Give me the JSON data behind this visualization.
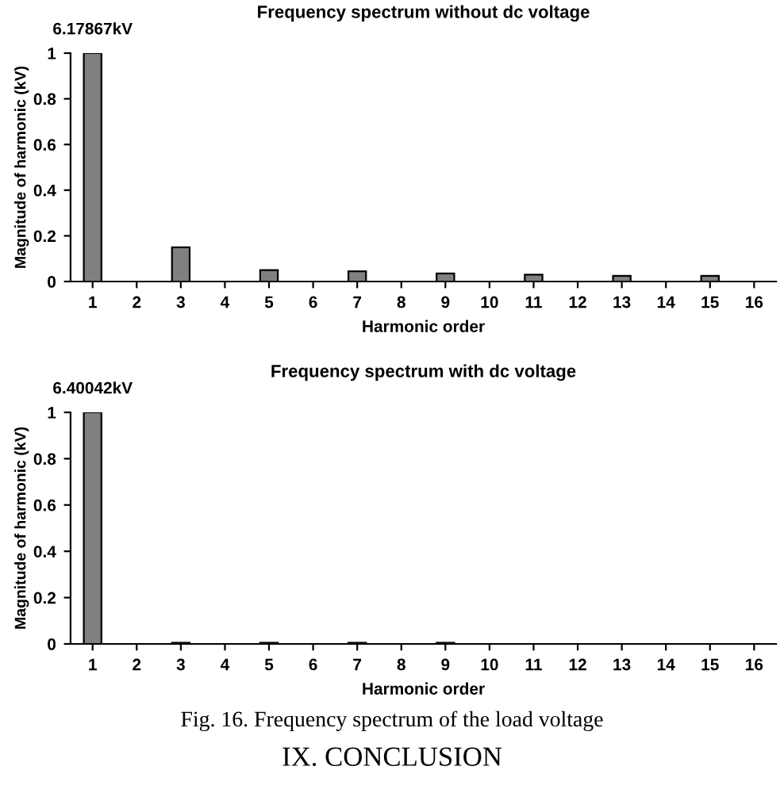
{
  "chart_data": [
    {
      "type": "bar",
      "title": "Frequency spectrum without dc voltage",
      "xlabel": "Harmonic order",
      "ylabel": "Magnitude of harmonic (kV)",
      "categories": [
        "1",
        "2",
        "3",
        "4",
        "5",
        "6",
        "7",
        "8",
        "9",
        "10",
        "11",
        "12",
        "13",
        "14",
        "15",
        "16"
      ],
      "values": [
        1,
        0,
        0.15,
        0,
        0.05,
        0,
        0.045,
        0,
        0.035,
        0,
        0.03,
        0,
        0.025,
        0,
        0.025,
        0
      ],
      "color": "#808080",
      "ylim": [
        0,
        1
      ],
      "yticks": [
        0,
        0.2,
        0.4,
        0.6,
        0.8,
        1
      ],
      "grid": false,
      "annotations": [
        {
          "text": "6.17867kV",
          "x": "1",
          "y": 1
        }
      ]
    },
    {
      "type": "bar",
      "title": "Frequency spectrum with dc voltage",
      "xlabel": "Harmonic order",
      "ylabel": "Magnitude of harmonic (kV)",
      "categories": [
        "1",
        "2",
        "3",
        "4",
        "5",
        "6",
        "7",
        "8",
        "9",
        "10",
        "11",
        "12",
        "13",
        "14",
        "15",
        "16"
      ],
      "values": [
        1,
        0,
        0.005,
        0,
        0.005,
        0,
        0.005,
        0,
        0.005,
        0,
        0,
        0,
        0,
        0,
        0,
        0
      ],
      "color": "#808080",
      "ylim": [
        0,
        1
      ],
      "yticks": [
        0,
        0.2,
        0.4,
        0.6,
        0.8,
        1
      ],
      "grid": false,
      "annotations": [
        {
          "text": "6.40042kV",
          "x": "1",
          "y": 1
        },
        "Fig. 16. Frequency spectrum of the load voltage",
        "IX. CONCLUSION"
      ]
    }
  ]
}
